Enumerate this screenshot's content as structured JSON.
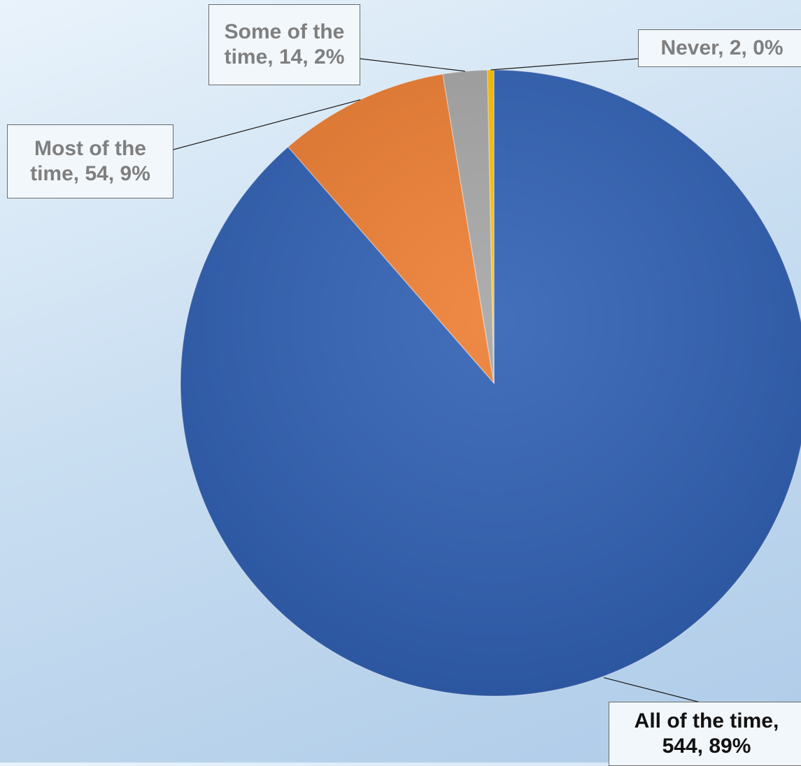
{
  "chart_data": {
    "type": "pie",
    "title": "",
    "start_angle_deg": 0,
    "direction": "clockwise",
    "slices": [
      {
        "label": "All of the time",
        "value": 544,
        "percent": "89%",
        "color": "#2f5fb3",
        "data_label": "All of the time, 544, 89%"
      },
      {
        "label": "Most of the time",
        "value": 54,
        "percent": "9%",
        "color": "#ed7d31",
        "data_label": "Most of the time, 54, 9%"
      },
      {
        "label": "Some of the time",
        "value": 14,
        "percent": "2%",
        "color": "#a5a5a5",
        "data_label": "Some of the time, 14, 2%"
      },
      {
        "label": "Never",
        "value": 2,
        "percent": "0%",
        "color": "#ffc000",
        "data_label": "Never, 2, 0%"
      }
    ],
    "legend": "none"
  }
}
